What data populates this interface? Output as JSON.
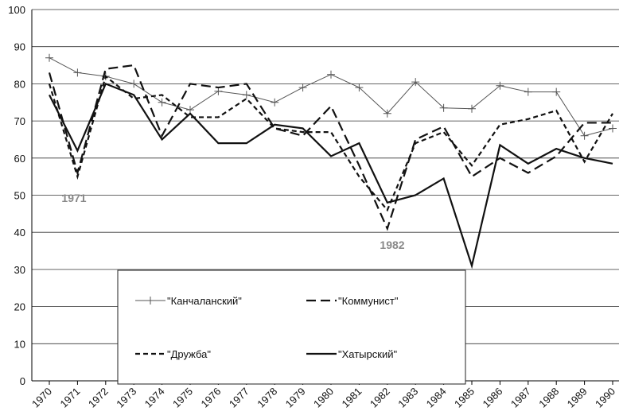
{
  "chart_data": {
    "type": "line",
    "categories": [
      "1970",
      "1971",
      "1972",
      "1973",
      "1974",
      "1975",
      "1976",
      "1977",
      "1978",
      "1979",
      "1980",
      "1981",
      "1982",
      "1983",
      "1984",
      "1985",
      "1986",
      "1987",
      "1988",
      "1989",
      "1990"
    ],
    "series": [
      {
        "name": "\"Канчаланский\"",
        "color": "#555555",
        "line_style": "thin-plus",
        "values": [
          87,
          83,
          82,
          80,
          75,
          73,
          78,
          77,
          75,
          79,
          82.5,
          79,
          72,
          80.5,
          73.5,
          73.3,
          79.5,
          77.8,
          77.8,
          66,
          68
        ]
      },
      {
        "name": "\"Коммунист\"",
        "color": "#111111",
        "line_style": "long-dash",
        "values": [
          83,
          56,
          84,
          85,
          66,
          80,
          79,
          80,
          68,
          66,
          74,
          58,
          41,
          65,
          68.5,
          55,
          60,
          56,
          60.5,
          69.5,
          69.5
        ]
      },
      {
        "name": "\"Дружба\"",
        "color": "#111111",
        "line_style": "short-dash",
        "values": [
          80,
          55,
          82,
          76,
          77,
          71,
          71,
          76,
          68,
          67,
          67,
          55,
          46,
          64,
          67,
          58,
          69,
          70.5,
          72.8,
          59,
          72
        ]
      },
      {
        "name": "\"Хатырский\"",
        "color": "#111111",
        "line_style": "solid",
        "values": [
          77,
          62,
          80,
          77,
          65,
          72,
          64,
          64,
          69,
          68,
          60.5,
          64,
          48,
          50,
          54.5,
          31,
          63.5,
          58.5,
          62.5,
          60,
          58.5
        ]
      }
    ],
    "annotations": [
      "1971",
      "1982"
    ],
    "ylim": [
      0,
      100
    ],
    "yticks": [
      0,
      10,
      20,
      30,
      40,
      50,
      60,
      70,
      80,
      90,
      100
    ],
    "grid": true
  }
}
